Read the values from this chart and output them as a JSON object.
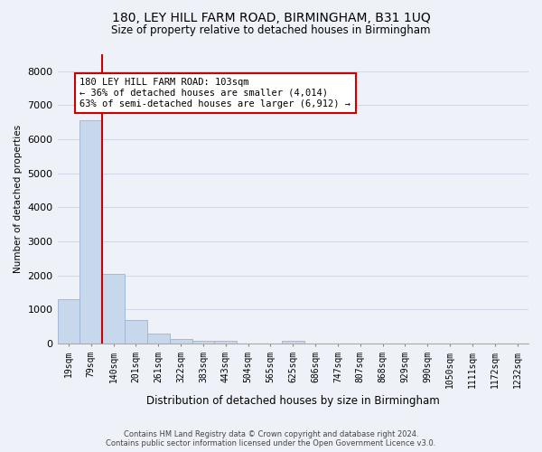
{
  "title": "180, LEY HILL FARM ROAD, BIRMINGHAM, B31 1UQ",
  "subtitle": "Size of property relative to detached houses in Birmingham",
  "xlabel": "Distribution of detached houses by size in Birmingham",
  "ylabel": "Number of detached properties",
  "footer_line1": "Contains HM Land Registry data © Crown copyright and database right 2024.",
  "footer_line2": "Contains public sector information licensed under the Open Government Licence v3.0.",
  "categories": [
    "19sqm",
    "79sqm",
    "140sqm",
    "201sqm",
    "261sqm",
    "322sqm",
    "383sqm",
    "443sqm",
    "504sqm",
    "565sqm",
    "625sqm",
    "686sqm",
    "747sqm",
    "807sqm",
    "868sqm",
    "929sqm",
    "990sqm",
    "1050sqm",
    "1111sqm",
    "1172sqm",
    "1232sqm"
  ],
  "bar_heights": [
    1300,
    6550,
    2050,
    680,
    290,
    130,
    80,
    70,
    0,
    0,
    80,
    0,
    0,
    0,
    0,
    0,
    0,
    0,
    0,
    0,
    0
  ],
  "bar_color": "#c8d8ec",
  "bar_edge_color": "#9ab4d4",
  "vline_color": "#cc0000",
  "annotation_text": "180 LEY HILL FARM ROAD: 103sqm\n← 36% of detached houses are smaller (4,014)\n63% of semi-detached houses are larger (6,912) →",
  "annotation_box_facecolor": "#ffffff",
  "annotation_box_edgecolor": "#cc0000",
  "ylim": [
    0,
    8500
  ],
  "yticks": [
    0,
    1000,
    2000,
    3000,
    4000,
    5000,
    6000,
    7000,
    8000
  ],
  "grid_color": "#d0d8e8",
  "background_color": "#eef2f8",
  "title_fontsize": 10,
  "subtitle_fontsize": 8.5
}
